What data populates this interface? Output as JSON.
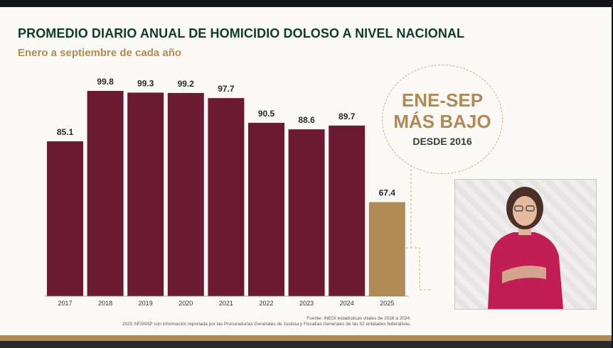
{
  "header": {
    "title": "PROMEDIO DIARIO ANUAL DE HOMICIDIO DOLOSO A NIVEL NACIONAL",
    "subtitle": "Enero a septiembre de cada año"
  },
  "badge": {
    "line1": "ENE-SEP",
    "line2": "MÁS BAJO",
    "line3": "DESDE 2016"
  },
  "source": {
    "line1": "Fuente: INEGI estadísticas vitales de 2018 a 2024.",
    "line2": "2025 SESNSP con información reportada por las Procuradurías Generales de Justicia y Fiscalías Generales de las 32 entidades federativas."
  },
  "colors": {
    "bar_primary": "#6b1a31",
    "bar_highlight": "#b08a55",
    "title": "#0f3b2d",
    "accent": "#b08a55"
  },
  "chart_data": {
    "type": "bar",
    "title": "PROMEDIO DIARIO ANUAL DE HOMICIDIO DOLOSO A NIVEL NACIONAL",
    "subtitle": "Enero a septiembre de cada año",
    "categories": [
      "2017",
      "2018",
      "2019",
      "2020",
      "2021",
      "2022",
      "2023",
      "2024",
      "2025"
    ],
    "values": [
      85.1,
      99.8,
      99.3,
      99.2,
      97.7,
      90.5,
      88.6,
      89.7,
      67.4
    ],
    "value_labels": [
      "85.1",
      "99.8",
      "99.3",
      "99.2",
      "97.7",
      "90.5",
      "88.6",
      "89.7",
      "67.4"
    ],
    "highlight_index": 8,
    "xlabel": "",
    "ylabel": "",
    "grid": false,
    "legend": "none"
  }
}
